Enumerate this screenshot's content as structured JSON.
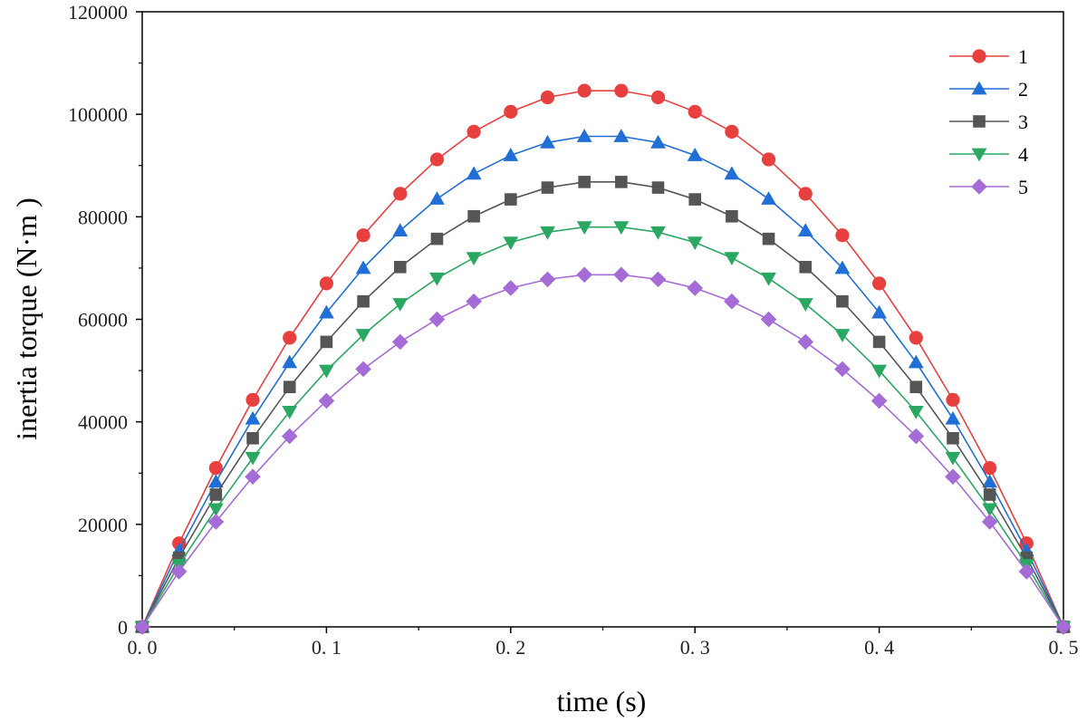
{
  "chart_data": {
    "type": "line",
    "title": "",
    "xlabel": "time (s)",
    "ylabel": "inertia torque (N·m )",
    "xlim": [
      0,
      0.5
    ],
    "ylim": [
      0,
      120000
    ],
    "x_ticks": [
      0.0,
      0.1,
      0.2,
      0.3,
      0.4,
      0.5
    ],
    "x_tick_labels": [
      "0. 0",
      "0. 1",
      "0. 2",
      "0. 3",
      "0. 4",
      "0. 5"
    ],
    "y_ticks": [
      0,
      20000,
      40000,
      60000,
      80000,
      100000,
      120000
    ],
    "y_tick_labels": [
      "0",
      "20000",
      "40000",
      "60000",
      "80000",
      "100000",
      "120000"
    ],
    "grid": false,
    "legend_position": "top-right",
    "x": [
      0,
      0.02,
      0.04,
      0.06,
      0.08,
      0.1,
      0.12,
      0.14,
      0.16,
      0.18,
      0.2,
      0.22,
      0.24,
      0.26,
      0.28,
      0.3,
      0.32,
      0.34,
      0.36,
      0.38,
      0.4,
      0.42,
      0.44,
      0.46,
      0.48,
      0.5
    ],
    "series": [
      {
        "name": "1",
        "color": "#e8403f",
        "marker": "circle",
        "values": [
          0,
          16300,
          31000,
          44300,
          56400,
          67000,
          76400,
          84500,
          91200,
          96600,
          100500,
          103300,
          104600,
          104600,
          103300,
          100500,
          96600,
          91200,
          84500,
          76400,
          67000,
          56400,
          44300,
          31000,
          16300,
          0
        ]
      },
      {
        "name": "2",
        "color": "#1f6fd6",
        "marker": "triangle-up",
        "values": [
          0,
          14900,
          28300,
          40600,
          51600,
          61300,
          70000,
          77300,
          83500,
          88400,
          92000,
          94500,
          95700,
          95700,
          94500,
          92000,
          88400,
          83500,
          77300,
          70000,
          61300,
          51600,
          40600,
          28300,
          14900,
          0
        ]
      },
      {
        "name": "3",
        "color": "#555555",
        "marker": "square",
        "values": [
          0,
          13500,
          25800,
          36800,
          46800,
          55600,
          63500,
          70200,
          75700,
          80100,
          83400,
          85700,
          86800,
          86800,
          85700,
          83400,
          80100,
          75700,
          70200,
          63500,
          55600,
          46800,
          36800,
          25800,
          13500,
          0
        ]
      },
      {
        "name": "4",
        "color": "#2aa862",
        "marker": "triangle-down",
        "values": [
          0,
          12100,
          23000,
          33000,
          42000,
          50000,
          57000,
          63000,
          68000,
          72000,
          75000,
          77000,
          78000,
          78000,
          77000,
          75000,
          72000,
          68000,
          63000,
          57000,
          50000,
          42000,
          33000,
          23000,
          12100,
          0
        ]
      },
      {
        "name": "5",
        "color": "#a56bd6",
        "marker": "diamond",
        "values": [
          0,
          10800,
          20500,
          29300,
          37200,
          44100,
          50300,
          55600,
          60000,
          63500,
          66100,
          67800,
          68700,
          68700,
          67800,
          66100,
          63500,
          60000,
          55600,
          50300,
          44100,
          37200,
          29300,
          20500,
          10800,
          0
        ]
      }
    ]
  }
}
